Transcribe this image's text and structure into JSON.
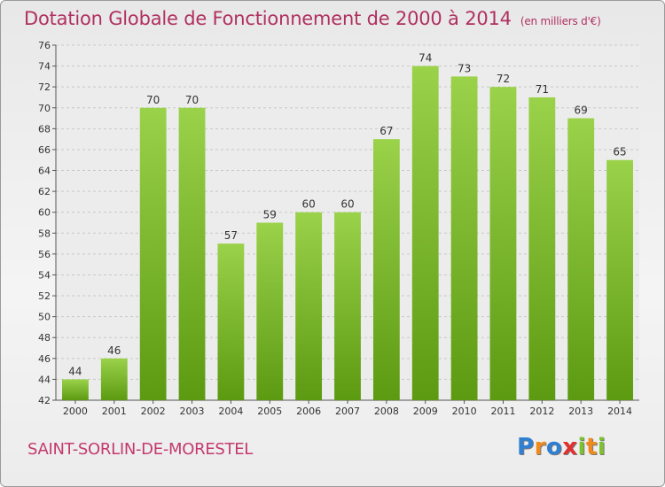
{
  "chart_data": {
    "type": "bar",
    "title": "Dotation Globale de Fonctionnement de 2000 à 2014",
    "subtitle": "(en milliers d'€)",
    "categories": [
      "2000",
      "2001",
      "2002",
      "2003",
      "2004",
      "2005",
      "2006",
      "2007",
      "2008",
      "2009",
      "2010",
      "2011",
      "2012",
      "2013",
      "2014"
    ],
    "values": [
      44,
      46,
      70,
      70,
      57,
      59,
      60,
      60,
      67,
      74,
      73,
      72,
      71,
      69,
      65
    ],
    "ylim": [
      42,
      76
    ],
    "yticks": [
      42,
      44,
      46,
      48,
      50,
      52,
      54,
      56,
      58,
      60,
      62,
      64,
      66,
      68,
      70,
      72,
      74,
      76
    ],
    "xlabel": "",
    "ylabel": "",
    "grid": true,
    "bar_color": "#7cc22f"
  },
  "commune": "SAINT-SORLIN-DE-MORESTEL",
  "logo": {
    "text": "Proxiti",
    "letters": [
      {
        "ch": "P",
        "color": "#2f7fd2"
      },
      {
        "ch": "r",
        "color": "#f08a1c"
      },
      {
        "ch": "o",
        "color": "#2f7fd2"
      },
      {
        "ch": "x",
        "color": "#e23030"
      },
      {
        "ch": "i",
        "color": "#7cc22f"
      },
      {
        "ch": "t",
        "color": "#f08a1c"
      },
      {
        "ch": "i",
        "color": "#7cc22f"
      }
    ]
  }
}
